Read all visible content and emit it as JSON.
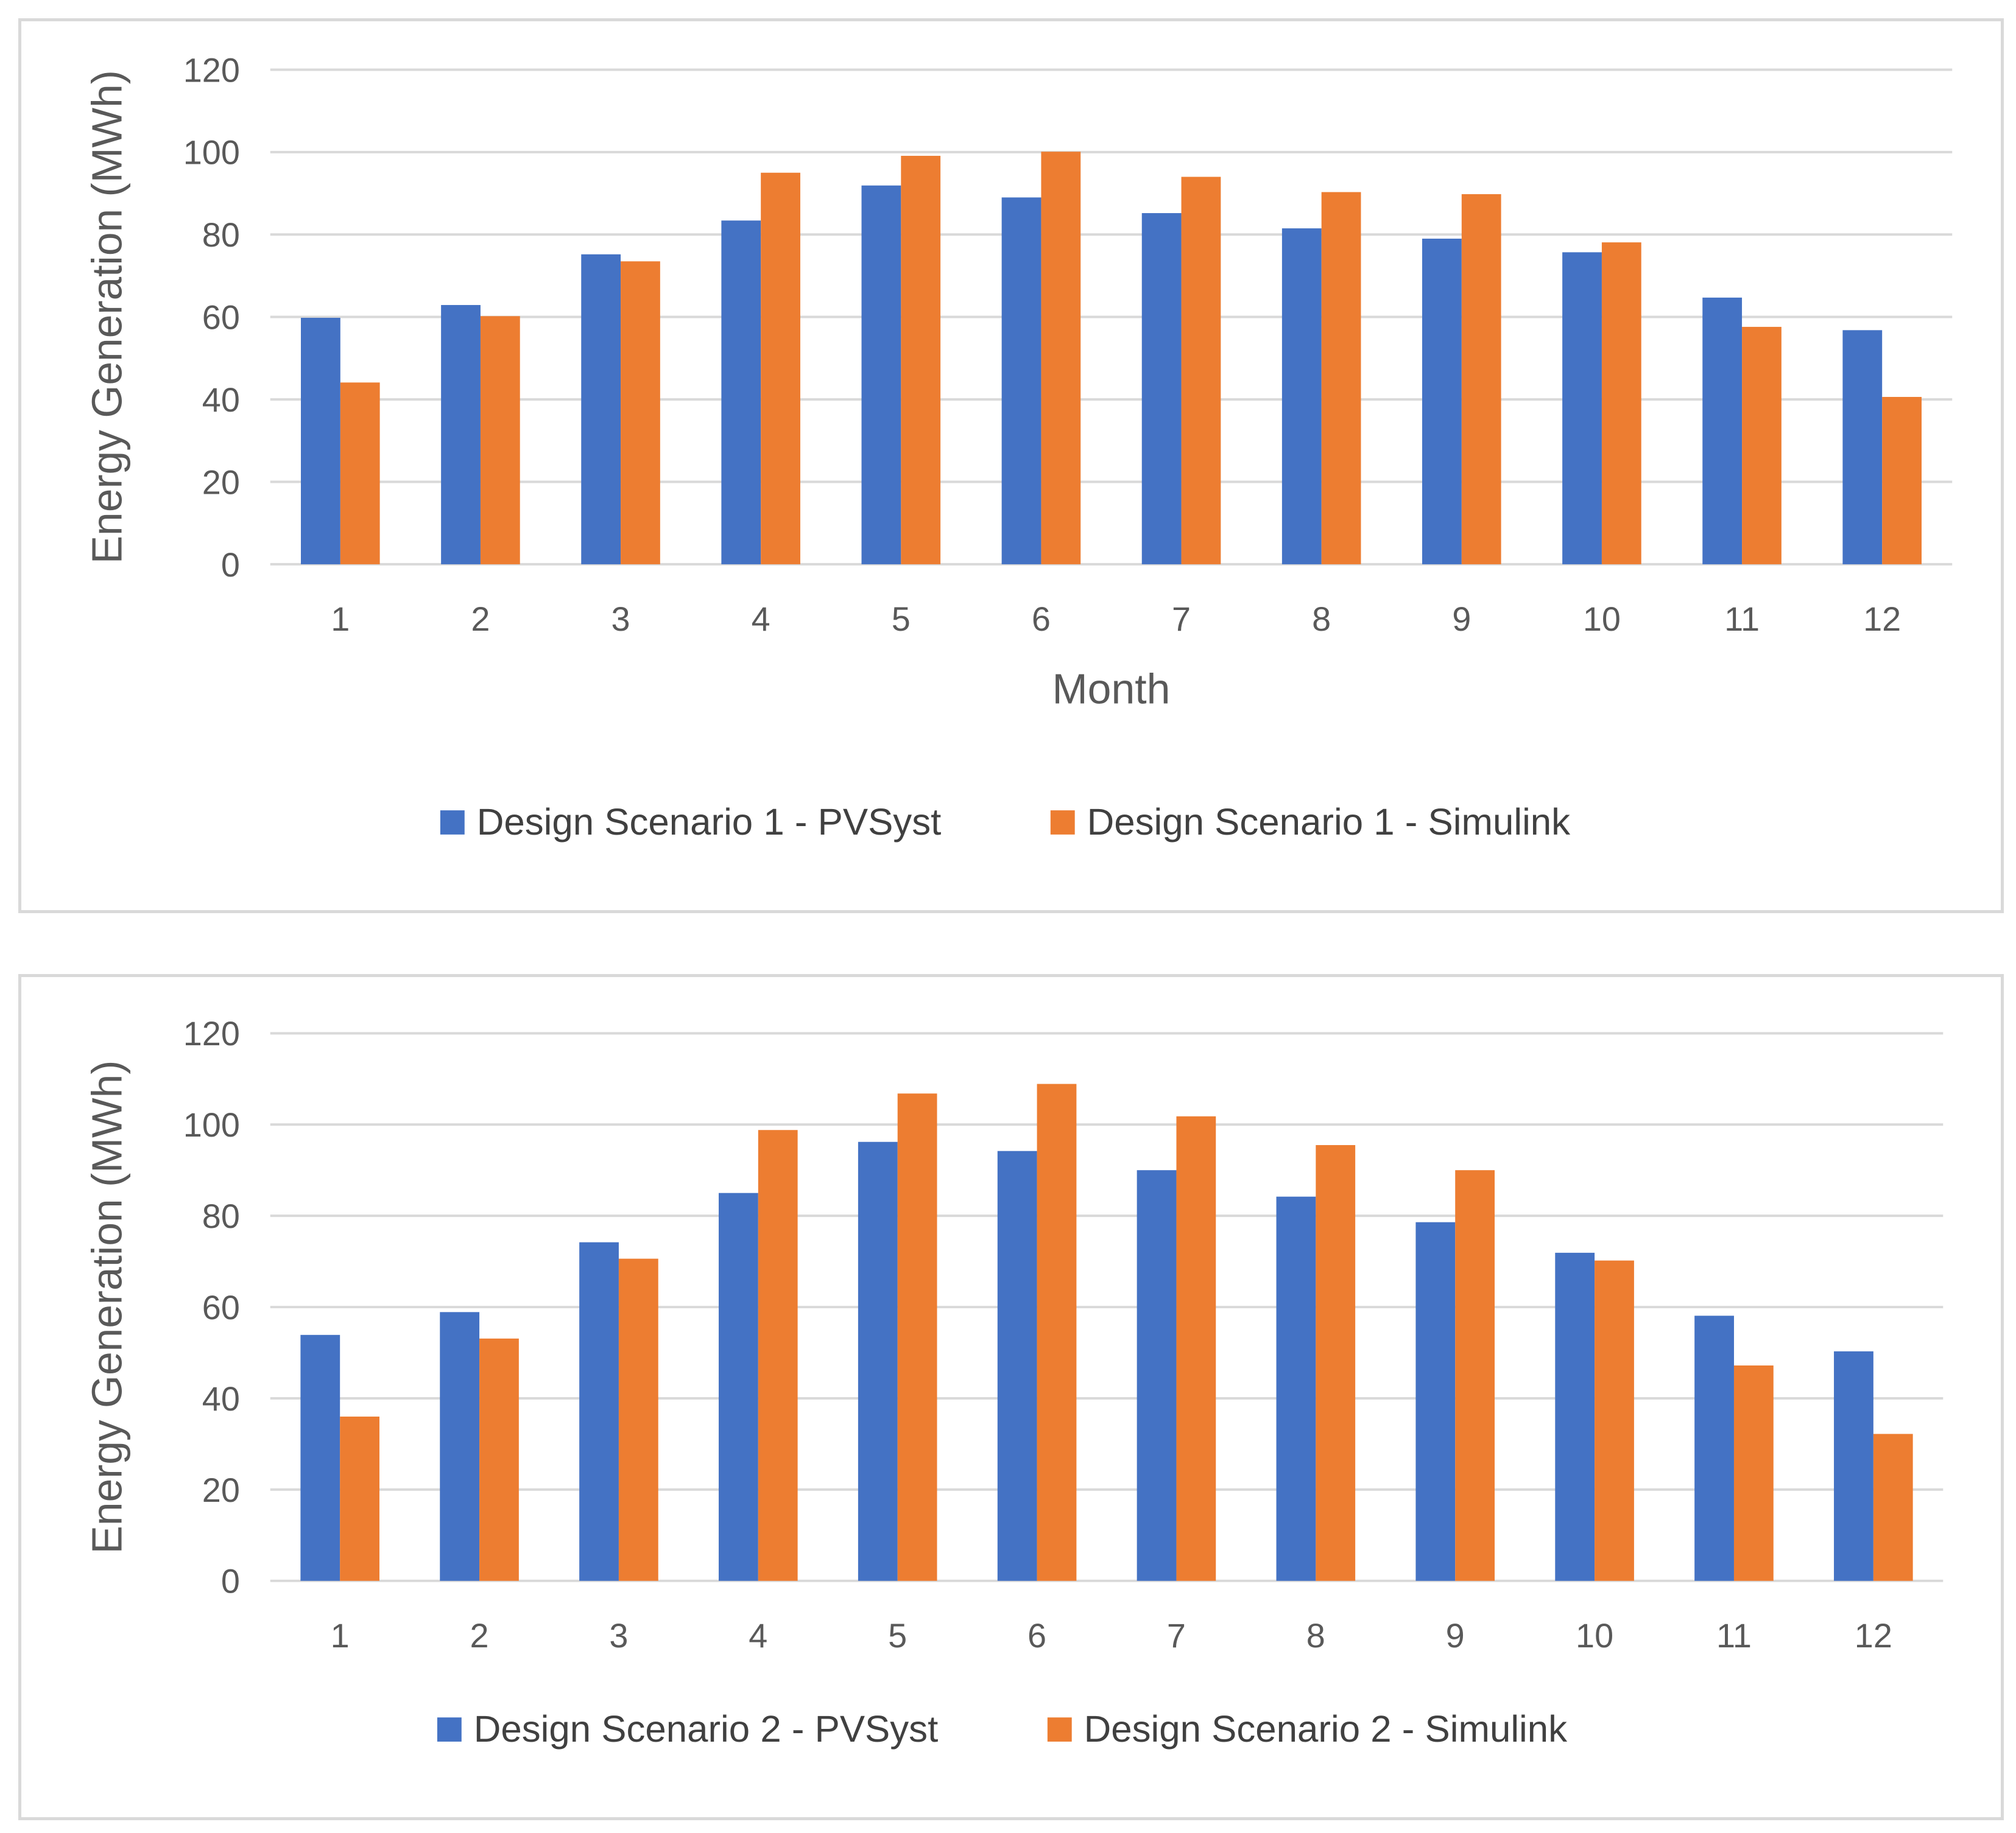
{
  "chart_data": [
    {
      "type": "bar",
      "title": "",
      "xlabel": "Month",
      "ylabel": "Energy Generation (MWh)",
      "ylim": [
        0,
        120
      ],
      "yticks": [
        0,
        20,
        40,
        60,
        80,
        100,
        120
      ],
      "grid": true,
      "legend_position": "bottom",
      "categories": [
        "1",
        "2",
        "3",
        "4",
        "5",
        "6",
        "7",
        "8",
        "9",
        "10",
        "11",
        "12"
      ],
      "series": [
        {
          "name": "Design Scenario 1 - PVSyst",
          "color": "#4472c4",
          "values": [
            59.8,
            62.9,
            75.2,
            83.4,
            91.9,
            89.0,
            85.2,
            81.5,
            79.0,
            75.7,
            64.7,
            56.8
          ]
        },
        {
          "name": "Design Scenario 1 - Simulink",
          "color": "#ed7d31",
          "values": [
            44.1,
            60.2,
            73.5,
            95.0,
            99.1,
            100.1,
            94.0,
            90.3,
            89.8,
            78.1,
            57.6,
            40.6
          ]
        }
      ]
    },
    {
      "type": "bar",
      "title": "",
      "xlabel": "",
      "ylabel": "Energy Generation (MWh)",
      "ylim": [
        0,
        120
      ],
      "yticks": [
        0,
        20,
        40,
        60,
        80,
        100,
        120
      ],
      "grid": true,
      "legend_position": "bottom",
      "categories": [
        "1",
        "2",
        "3",
        "4",
        "5",
        "6",
        "7",
        "8",
        "9",
        "10",
        "11",
        "12"
      ],
      "series": [
        {
          "name": "Design Scenario 2 - PVSyst",
          "color": "#4472c4",
          "values": [
            53.9,
            58.9,
            74.2,
            85.0,
            96.2,
            94.2,
            90.0,
            84.2,
            78.6,
            71.9,
            58.1,
            50.3
          ]
        },
        {
          "name": "Design Scenario 2 - Simulink",
          "color": "#ed7d31",
          "values": [
            36.0,
            53.1,
            70.6,
            98.8,
            106.8,
            108.9,
            101.8,
            95.5,
            90.0,
            70.2,
            47.2,
            32.2
          ]
        }
      ]
    }
  ]
}
